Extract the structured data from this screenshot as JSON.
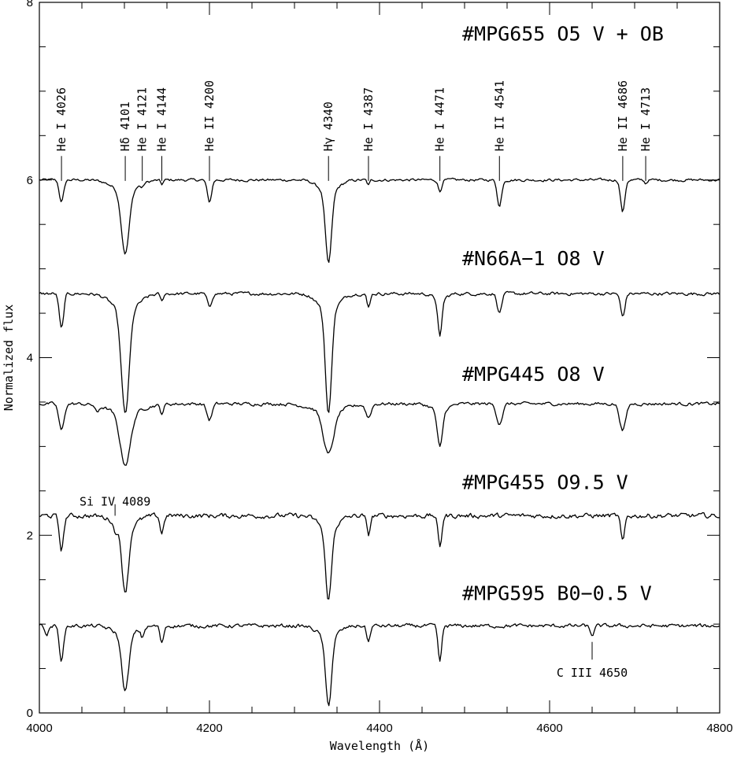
{
  "chart_data": {
    "type": "line",
    "xlabel": "Wavelength (Å)",
    "ylabel": "Normalized flux",
    "xlim": [
      4000,
      4800
    ],
    "ylim": [
      0,
      8
    ],
    "x_ticks": [
      "4000",
      "4200",
      "4400",
      "4600",
      "4800"
    ],
    "y_ticks": [
      "0",
      "2",
      "4",
      "6",
      "8"
    ],
    "grid": false,
    "series": [
      {
        "name": "#MPG655   O5 V + OB",
        "continuum": 6.0,
        "label_y": 7.65,
        "noise": 0.025,
        "lines": [
          {
            "x": 4026,
            "depth": 0.25,
            "width": 2.5
          },
          {
            "x": 4101,
            "depth": 0.7,
            "width": 4.5
          },
          {
            "x": 4121,
            "depth": 0.04,
            "width": 1.5
          },
          {
            "x": 4144,
            "depth": 0.05,
            "width": 1.5
          },
          {
            "x": 4200,
            "depth": 0.25,
            "width": 2.5
          },
          {
            "x": 4340,
            "depth": 0.8,
            "width": 3.5
          },
          {
            "x": 4387,
            "depth": 0.06,
            "width": 1.5
          },
          {
            "x": 4471,
            "depth": 0.13,
            "width": 2.0
          },
          {
            "x": 4541,
            "depth": 0.3,
            "width": 2.5
          },
          {
            "x": 4686,
            "depth": 0.36,
            "width": 2.5
          },
          {
            "x": 4713,
            "depth": 0.04,
            "width": 1.5
          }
        ]
      },
      {
        "name": "#N66A−1   O8 V",
        "continuum": 4.72,
        "label_y": 5.12,
        "noise": 0.03,
        "lines": [
          {
            "x": 4026,
            "depth": 0.4,
            "width": 2.5
          },
          {
            "x": 4101,
            "depth": 1.15,
            "width": 4.5
          },
          {
            "x": 4144,
            "depth": 0.09,
            "width": 1.5
          },
          {
            "x": 4200,
            "depth": 0.15,
            "width": 2.5
          },
          {
            "x": 4340,
            "depth": 1.15,
            "width": 3.5
          },
          {
            "x": 4387,
            "depth": 0.16,
            "width": 1.8
          },
          {
            "x": 4471,
            "depth": 0.42,
            "width": 2.2
          },
          {
            "x": 4541,
            "depth": 0.22,
            "width": 2.5
          },
          {
            "x": 4686,
            "depth": 0.26,
            "width": 2.5
          }
        ]
      },
      {
        "name": "#MPG445   O8 V",
        "continuum": 3.48,
        "label_y": 3.82,
        "noise": 0.03,
        "lines": [
          {
            "x": 4026,
            "depth": 0.3,
            "width": 3.0
          },
          {
            "x": 4068,
            "depth": 0.08,
            "width": 2.0
          },
          {
            "x": 4101,
            "depth": 0.58,
            "width": 6.0
          },
          {
            "x": 4144,
            "depth": 0.1,
            "width": 2.0
          },
          {
            "x": 4200,
            "depth": 0.18,
            "width": 3.0
          },
          {
            "x": 4340,
            "depth": 0.48,
            "width": 6.0
          },
          {
            "x": 4387,
            "depth": 0.15,
            "width": 3.0
          },
          {
            "x": 4471,
            "depth": 0.42,
            "width": 3.0
          },
          {
            "x": 4541,
            "depth": 0.22,
            "width": 3.5
          },
          {
            "x": 4686,
            "depth": 0.3,
            "width": 3.5
          }
        ]
      },
      {
        "name": "#MPG455   O9.5 V",
        "continuum": 2.22,
        "label_y": 2.6,
        "noise": 0.045,
        "lines": [
          {
            "x": 4026,
            "depth": 0.38,
            "width": 2.5
          },
          {
            "x": 4089,
            "depth": 0.1,
            "width": 1.8
          },
          {
            "x": 4101,
            "depth": 0.72,
            "width": 4.0
          },
          {
            "x": 4144,
            "depth": 0.2,
            "width": 2.0
          },
          {
            "x": 4340,
            "depth": 0.8,
            "width": 3.5
          },
          {
            "x": 4387,
            "depth": 0.22,
            "width": 2.0
          },
          {
            "x": 4471,
            "depth": 0.35,
            "width": 2.2
          },
          {
            "x": 4686,
            "depth": 0.3,
            "width": 2.2
          }
        ]
      },
      {
        "name": "#MPG595   B0−0.5 V",
        "continuum": 0.98,
        "label_y": 1.35,
        "noise": 0.035,
        "lines": [
          {
            "x": 4009,
            "depth": 0.1,
            "width": 2.0
          },
          {
            "x": 4026,
            "depth": 0.38,
            "width": 2.5
          },
          {
            "x": 4101,
            "depth": 0.62,
            "width": 4.0
          },
          {
            "x": 4121,
            "depth": 0.1,
            "width": 1.8
          },
          {
            "x": 4144,
            "depth": 0.2,
            "width": 2.0
          },
          {
            "x": 4340,
            "depth": 0.76,
            "width": 3.5
          },
          {
            "x": 4387,
            "depth": 0.18,
            "width": 2.0
          },
          {
            "x": 4471,
            "depth": 0.4,
            "width": 2.2
          },
          {
            "x": 4650,
            "depth": 0.1,
            "width": 2.5
          }
        ]
      }
    ],
    "line_ids_top": [
      {
        "label": "He I 4026",
        "x": 4026
      },
      {
        "label": "Hδ 4101",
        "x": 4101
      },
      {
        "label": "He I 4121",
        "x": 4121
      },
      {
        "label": "He I 4144",
        "x": 4144
      },
      {
        "label": "He II 4200",
        "x": 4200
      },
      {
        "label": "Hγ 4340",
        "x": 4340
      },
      {
        "label": "He I 4387",
        "x": 4387
      },
      {
        "label": "He I 4471",
        "x": 4471
      },
      {
        "label": "He II 4541",
        "x": 4541
      },
      {
        "label": "He II 4686",
        "x": 4686
      },
      {
        "label": "He I 4713",
        "x": 4713
      }
    ],
    "annotations": [
      {
        "label": "Si IV 4089",
        "x": 4089,
        "y": 2.38,
        "tick_from": 2.35,
        "tick_to": 2.22
      },
      {
        "label": "C III 4650",
        "x": 4650,
        "y": 0.45,
        "tick_from": 0.6,
        "tick_to": 0.8
      }
    ]
  }
}
